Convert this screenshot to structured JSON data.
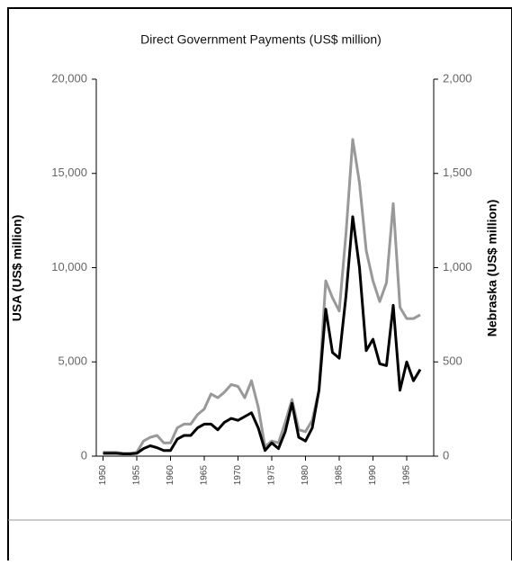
{
  "chart_data": {
    "type": "line",
    "title": "Direct Government Payments (US$ million)",
    "ylabel": "USA (US$ million)",
    "y2label": "Nebraska (US$ million)",
    "x": [
      1950,
      1951,
      1952,
      1953,
      1954,
      1955,
      1956,
      1957,
      1958,
      1959,
      1960,
      1961,
      1962,
      1963,
      1964,
      1965,
      1966,
      1967,
      1968,
      1969,
      1970,
      1971,
      1972,
      1973,
      1974,
      1975,
      1976,
      1977,
      1978,
      1979,
      1980,
      1981,
      1982,
      1983,
      1984,
      1985,
      1986,
      1987,
      1988,
      1989,
      1990,
      1991,
      1992,
      1993,
      1994,
      1995,
      1996,
      1997
    ],
    "series": [
      {
        "color": "#999999",
        "values": [
          200,
          200,
          200,
          150,
          150,
          200,
          800,
          1000,
          1100,
          700,
          700,
          1500,
          1700,
          1700,
          2200,
          2500,
          3300,
          3100,
          3400,
          3800,
          3700,
          3100,
          4000,
          2600,
          500,
          800,
          700,
          1800,
          3000,
          1400,
          1300,
          1900,
          3500,
          9300,
          8400,
          7700,
          11800,
          16800,
          14500,
          10900,
          9300,
          8200,
          9200,
          13400,
          7900,
          7300,
          7300,
          7500
        ]
      },
      {
        "color": "#000000",
        "axis": "y2",
        "values": [
          15,
          15,
          15,
          12,
          12,
          15,
          40,
          55,
          45,
          30,
          30,
          90,
          110,
          110,
          150,
          170,
          170,
          140,
          180,
          200,
          190,
          210,
          230,
          150,
          30,
          70,
          40,
          130,
          280,
          100,
          80,
          150,
          350,
          780,
          550,
          520,
          850,
          1270,
          1000,
          560,
          620,
          490,
          480,
          800,
          350,
          500,
          400,
          460
        ]
      }
    ],
    "xlim": [
      1949,
      1999
    ],
    "xticks": [
      1950,
      1955,
      1960,
      1965,
      1970,
      1975,
      1980,
      1985,
      1990,
      1995
    ],
    "ylim": [
      0,
      20000
    ],
    "yticks": [
      0,
      {
        "value": 5000,
        "label": "5,000"
      },
      {
        "value": 10000,
        "label": "10,000"
      },
      {
        "value": 15000,
        "label": "15,000"
      },
      {
        "value": 20000,
        "label": "20,000"
      }
    ],
    "y2lim": [
      0,
      2000
    ],
    "y2ticks": [
      0,
      500,
      {
        "value": 1000,
        "label": "1,000"
      },
      {
        "value": 1500,
        "label": "1,500"
      },
      {
        "value": 2000,
        "label": "2,000"
      }
    ]
  }
}
